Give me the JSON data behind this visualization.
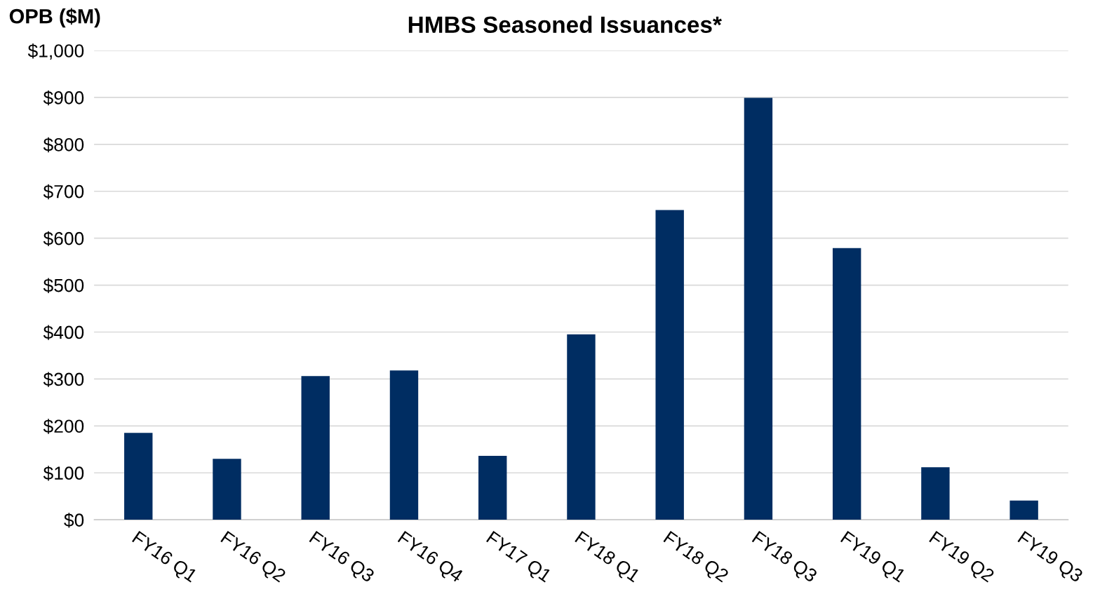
{
  "chart_data": {
    "type": "bar",
    "title": "HMBS Seasoned Issuances*",
    "ylabel": "OPB ($M)",
    "categories": [
      "FY16 Q1",
      "FY16 Q2",
      "FY16 Q3",
      "FY16 Q4",
      "FY17 Q1",
      "FY18 Q1",
      "FY18 Q2",
      "FY18 Q3",
      "FY19 Q1",
      "FY19 Q2",
      "FY19 Q3"
    ],
    "values": [
      185,
      130,
      306,
      318,
      136,
      395,
      660,
      899,
      579,
      112,
      41
    ],
    "color": "#002d62",
    "ylim": [
      0,
      1000
    ],
    "yticks": [
      {
        "value": 0,
        "label": "$0"
      },
      {
        "value": 100,
        "label": "$100"
      },
      {
        "value": 200,
        "label": "$200"
      },
      {
        "value": 300,
        "label": "$300"
      },
      {
        "value": 400,
        "label": "$400"
      },
      {
        "value": 500,
        "label": "$500"
      },
      {
        "value": 600,
        "label": "$600"
      },
      {
        "value": 700,
        "label": "$700"
      },
      {
        "value": 800,
        "label": "$800"
      },
      {
        "value": 900,
        "label": "$900"
      },
      {
        "value": 1000,
        "label": "$1,000"
      }
    ],
    "grid": "y",
    "legend": false
  }
}
